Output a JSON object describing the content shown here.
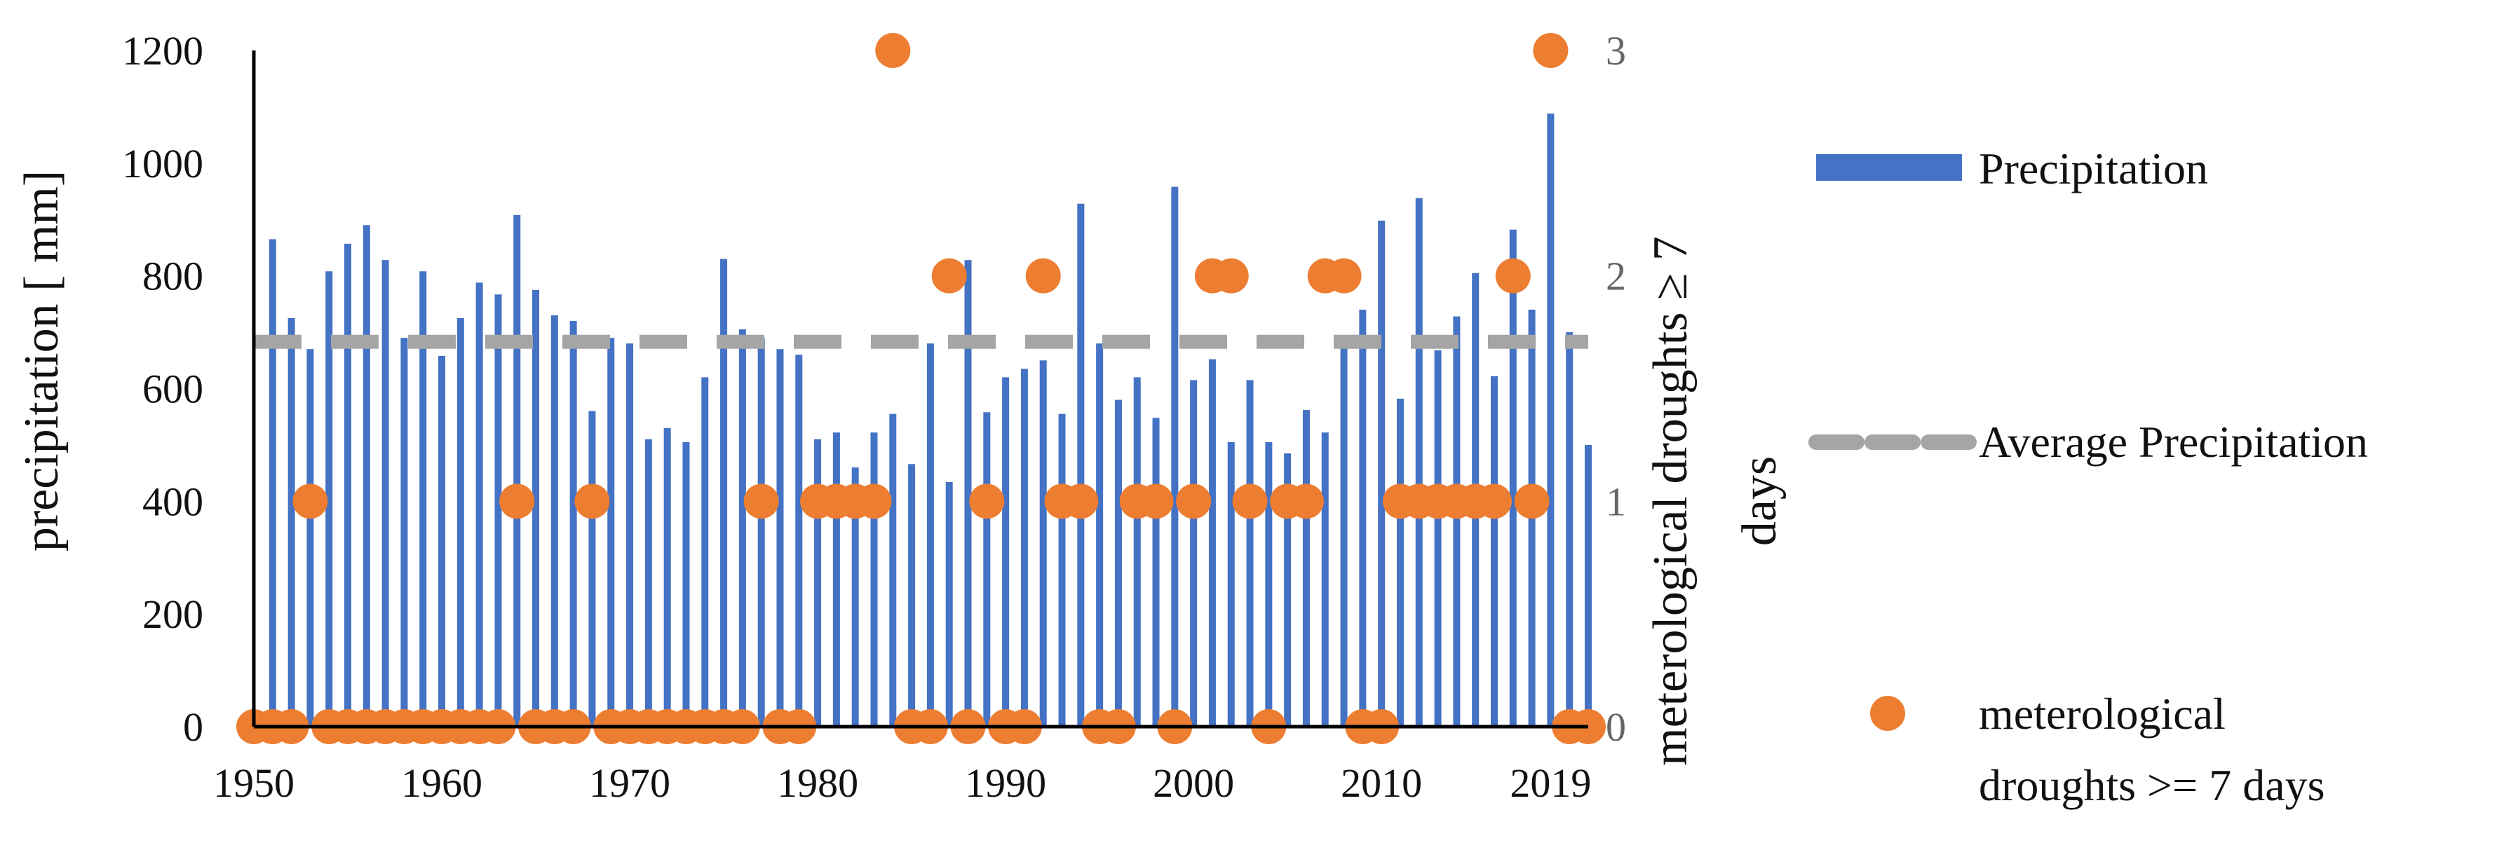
{
  "chart_data": {
    "type": "bar",
    "years": [
      1950,
      1951,
      1952,
      1953,
      1954,
      1955,
      1956,
      1957,
      1958,
      1959,
      1960,
      1961,
      1962,
      1963,
      1964,
      1965,
      1966,
      1967,
      1968,
      1969,
      1970,
      1971,
      1972,
      1973,
      1974,
      1975,
      1976,
      1977,
      1978,
      1979,
      1980,
      1981,
      1982,
      1983,
      1984,
      1985,
      1986,
      1987,
      1988,
      1989,
      1990,
      1991,
      1992,
      1993,
      1994,
      1995,
      1996,
      1997,
      1998,
      1999,
      2000,
      2001,
      2002,
      2003,
      2004,
      2005,
      2006,
      2007,
      2008,
      2009,
      2010,
      2011,
      2012,
      2013,
      2014,
      2015,
      2016,
      2017,
      2018,
      2019,
      2020,
      2021
    ],
    "series": [
      {
        "name": "Precipitation",
        "type": "bar",
        "axis": "left",
        "color": "#4472C4",
        "values": [
          0,
          865,
          725,
          670,
          808,
          857,
          890,
          828,
          690,
          808,
          658,
          725,
          788,
          767,
          908,
          775,
          730,
          720,
          560,
          690,
          680,
          510,
          530,
          505,
          620,
          830,
          705,
          690,
          670,
          660,
          510,
          522,
          460,
          522,
          555,
          466,
          680,
          434,
          828,
          558,
          620,
          635,
          650,
          555,
          928,
          680,
          580,
          620,
          548,
          958,
          615,
          652,
          505,
          615,
          505,
          485,
          562,
          522,
          685,
          740,
          898,
          582,
          938,
          668,
          728,
          805,
          622,
          882,
          740,
          1088,
          700,
          500
        ]
      },
      {
        "name": "Average Precipitation",
        "type": "line",
        "axis": "left",
        "color": "#A5A5A5",
        "value": 683
      },
      {
        "name": "meterological droughts >= 7 days",
        "type": "scatter",
        "axis": "right",
        "color": "#ED7D31",
        "values": [
          0,
          0,
          0,
          1,
          0,
          0,
          0,
          0,
          0,
          0,
          0,
          0,
          0,
          0,
          1,
          0,
          0,
          0,
          1,
          0,
          0,
          0,
          0,
          0,
          0,
          0,
          0,
          1,
          0,
          0,
          1,
          1,
          1,
          1,
          3,
          0,
          0,
          2,
          0,
          1,
          0,
          0,
          2,
          1,
          1,
          0,
          0,
          1,
          1,
          0,
          1,
          2,
          2,
          1,
          0,
          1,
          1,
          2,
          2,
          0,
          0,
          1,
          1,
          1,
          1,
          1,
          1,
          2,
          1,
          3,
          0,
          0
        ]
      }
    ],
    "x_ticks": [
      "1950",
      "1960",
      "1970",
      "1980",
      "1990",
      "2000",
      "2010",
      "2019"
    ],
    "y_left": {
      "label": "precipitation [ mm]",
      "ticks": [
        "0",
        "200",
        "400",
        "600",
        "800",
        "1000",
        "1200"
      ],
      "range": [
        0,
        1200
      ]
    },
    "y_right": {
      "label_line1": "meterological droughts ≥ 7",
      "label_line2": "days",
      "ticks": [
        "0",
        "1",
        "2",
        "3"
      ],
      "range": [
        0,
        3
      ]
    },
    "legend": {
      "position": "right",
      "items": [
        {
          "label": "Precipitation",
          "marker": "bar"
        },
        {
          "label": "Average Precipitation",
          "marker": "dash"
        },
        {
          "label_line1": "meterological",
          "label_line2": "droughts >= 7 days",
          "marker": "dot"
        }
      ]
    }
  }
}
